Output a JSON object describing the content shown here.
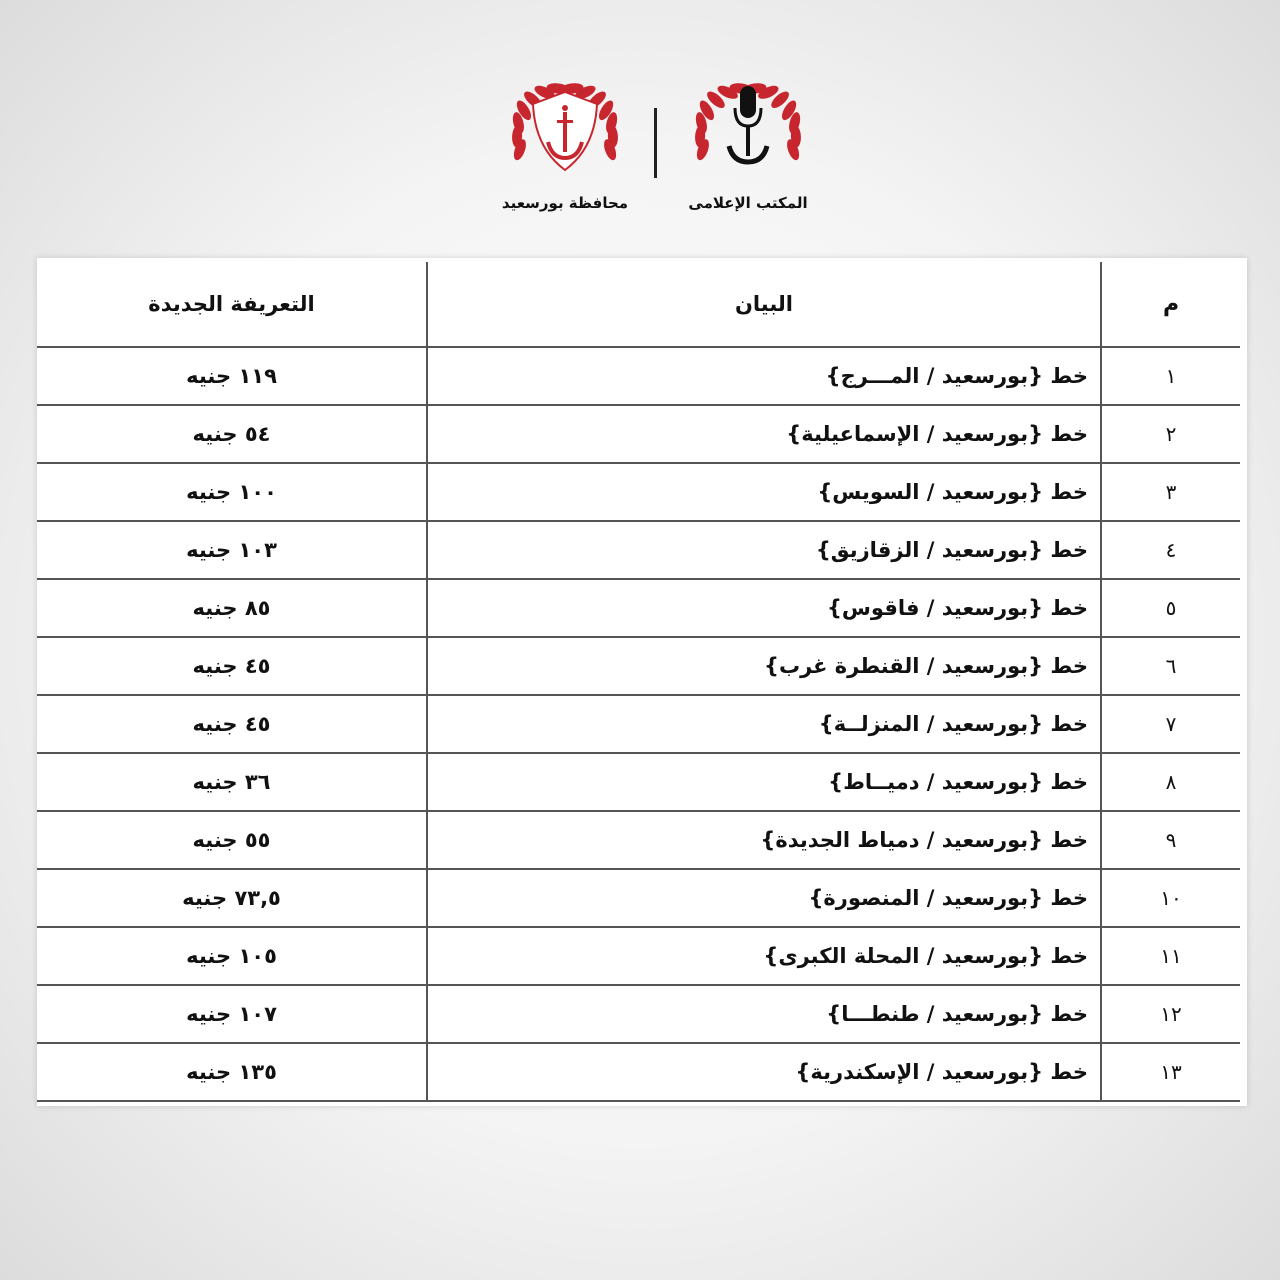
{
  "header": {
    "logos": [
      {
        "name": "port-said-governorate-logo",
        "caption": "محافظة بورسعيد"
      },
      {
        "name": "media-office-logo",
        "caption": "المكتب الإعلامى"
      }
    ],
    "colors": {
      "laurel": "#c8262e",
      "mic": "#111111"
    }
  },
  "table": {
    "columns": {
      "num": "م",
      "desc": "البيان",
      "price": "التعريفة الجديدة"
    },
    "rows": [
      {
        "num": "١",
        "desc": "خط {بورسعيد / المـــرج}",
        "price": "١١٩ جنيه"
      },
      {
        "num": "٢",
        "desc": "خط {بورسعيد / الإسماعيلية}",
        "price": "٥٤ جنيه"
      },
      {
        "num": "٣",
        "desc": "خط {بورسعيد / السويس}",
        "price": "١٠٠ جنيه"
      },
      {
        "num": "٤",
        "desc": "خط {بورسعيد / الزقازيق}",
        "price": "١٠٣ جنيه"
      },
      {
        "num": "٥",
        "desc": "خط {بورسعيد / فاقوس}",
        "price": "٨٥ جنيه"
      },
      {
        "num": "٦",
        "desc": "خط {بورسعيد / القنطرة غرب}",
        "price": "٤٥ جنيه"
      },
      {
        "num": "٧",
        "desc": "خط {بورسعيد / المنزلــة}",
        "price": "٤٥ جنيه"
      },
      {
        "num": "٨",
        "desc": "خط {بورسعيد / دميــاط}",
        "price": "٣٦ جنيه"
      },
      {
        "num": "٩",
        "desc": "خط {بورسعيد / دمياط الجديدة}",
        "price": "٥٥ جنيه"
      },
      {
        "num": "١٠",
        "desc": "خط {بورسعيد / المنصورة}",
        "price": "٧٣,٥ جنيه"
      },
      {
        "num": "١١",
        "desc": "خط {بورسعيد / المحلة الكبرى}",
        "price": "١٠٥ جنيه"
      },
      {
        "num": "١٢",
        "desc": "خط {بورسعيد / طنطـــا}",
        "price": "١٠٧ جنيه"
      },
      {
        "num": "١٣",
        "desc": "خط {بورسعيد / الإسكندرية}",
        "price": "١٣٥ جنيه"
      }
    ]
  }
}
